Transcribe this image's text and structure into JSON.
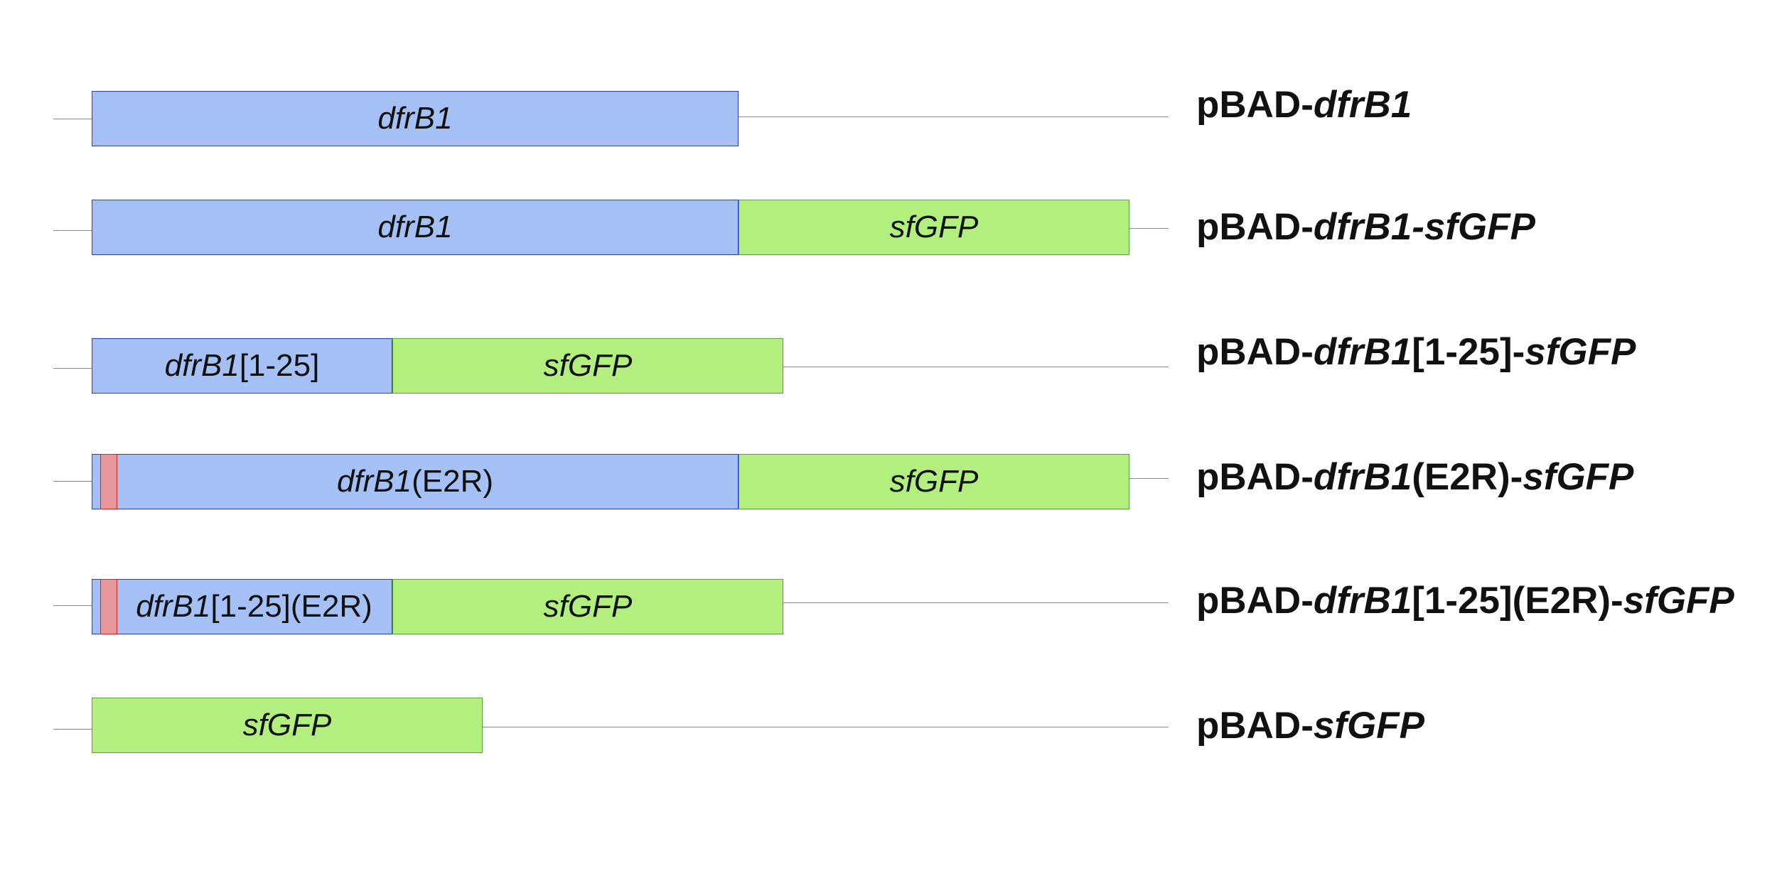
{
  "constructs": [
    {
      "name_prefix": "pBAD-",
      "name_italic": "dfrB1",
      "segments": [
        {
          "kind": "dfrB1",
          "label_italic": "dfrB1",
          "label_plain": ""
        }
      ]
    },
    {
      "name_prefix": "pBAD-",
      "name_italic": "dfrB1-sfGFP",
      "segments": [
        {
          "kind": "dfrB1",
          "label_italic": "dfrB1",
          "label_plain": ""
        },
        {
          "kind": "sfGFP",
          "label_italic": "sfGFP",
          "label_plain": ""
        }
      ]
    },
    {
      "name_prefix": "pBAD-",
      "name_italic": "dfrB1",
      "name_plain": "[1-25]-",
      "name_italic_2": "sfGFP",
      "segments": [
        {
          "kind": "dfrB1",
          "label_italic": "dfrB1",
          "label_plain": "[1-25]"
        },
        {
          "kind": "sfGFP",
          "label_italic": "sfGFP",
          "label_plain": ""
        }
      ]
    },
    {
      "name_prefix": "pBAD-",
      "name_italic": "dfrB1",
      "name_plain": "(E2R)-",
      "name_italic_2": "sfGFP",
      "segments": [
        {
          "kind": "dfrB1",
          "label_italic": "dfrB1",
          "label_plain": "(E2R)"
        },
        {
          "kind": "sfGFP",
          "label_italic": "sfGFP",
          "label_plain": ""
        }
      ]
    },
    {
      "name_prefix": "pBAD-",
      "name_italic": "dfrB1",
      "name_plain": "[1-25](E2R)-",
      "name_italic_2": "sfGFP",
      "segments": [
        {
          "kind": "dfrB1",
          "label_italic": "dfrB1",
          "label_plain": "[1-25](E2R)"
        },
        {
          "kind": "sfGFP",
          "label_italic": "sfGFP",
          "label_plain": ""
        }
      ]
    },
    {
      "name_prefix": "pBAD-",
      "name_italic": "sfGFP",
      "segments": [
        {
          "kind": "sfGFP",
          "label_italic": "sfGFP",
          "label_plain": ""
        }
      ]
    }
  ],
  "colors": {
    "dfrB1_fill": "#a4c0f4",
    "dfrB1_border": "#2a3fd6",
    "sfGFP_fill": "#b2ef7e",
    "sfGFP_border": "#5aa03a",
    "mutation_fill": "#e8969a",
    "mutation_border": "#d42424",
    "backbone": "#8a8a8a"
  }
}
